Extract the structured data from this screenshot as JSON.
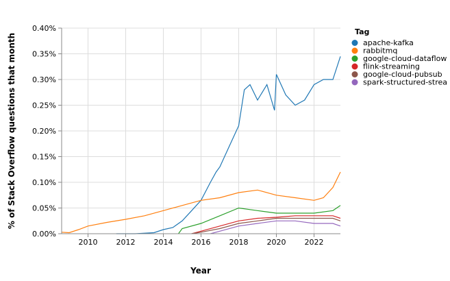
{
  "chart_data": {
    "type": "line",
    "xlabel": "Year",
    "ylabel": "% of Stack Overflow questions that month",
    "xlim": [
      2008.6,
      2023.4
    ],
    "ylim": [
      0,
      0.4
    ],
    "x_ticks": [
      "2010",
      "2012",
      "2014",
      "2016",
      "2018",
      "2020",
      "2022"
    ],
    "y_ticks": [
      "0.00%",
      "0.05%",
      "0.10%",
      "0.15%",
      "0.20%",
      "0.25%",
      "0.30%",
      "0.35%",
      "0.40%"
    ],
    "grid": true,
    "legend": {
      "title": "Tag",
      "position": "right"
    },
    "series": [
      {
        "name": "apache-kafka",
        "color": "#1f77b4",
        "x": [
          2011.5,
          2012.5,
          2013.5,
          2014.0,
          2014.5,
          2015.0,
          2015.5,
          2016.0,
          2016.5,
          2016.8,
          2017.0,
          2017.5,
          2018.0,
          2018.3,
          2018.6,
          2019.0,
          2019.5,
          2019.9,
          2020.0,
          2020.5,
          2021.0,
          2021.5,
          2022.0,
          2022.5,
          2023.0,
          2023.4
        ],
        "y": [
          0.0,
          0.0,
          0.002,
          0.008,
          0.012,
          0.025,
          0.045,
          0.065,
          0.1,
          0.12,
          0.13,
          0.17,
          0.21,
          0.28,
          0.29,
          0.26,
          0.29,
          0.24,
          0.31,
          0.27,
          0.25,
          0.26,
          0.29,
          0.3,
          0.3,
          0.345
        ]
      },
      {
        "name": "rabbitmq",
        "color": "#ff7f0e",
        "x": [
          2008.6,
          2009.0,
          2009.5,
          2010.0,
          2011.0,
          2012.0,
          2013.0,
          2014.0,
          2015.0,
          2016.0,
          2017.0,
          2018.0,
          2019.0,
          2020.0,
          2021.0,
          2022.0,
          2022.5,
          2023.0,
          2023.4
        ],
        "y": [
          0.003,
          0.002,
          0.008,
          0.015,
          0.022,
          0.028,
          0.035,
          0.045,
          0.055,
          0.065,
          0.07,
          0.08,
          0.085,
          0.075,
          0.07,
          0.065,
          0.07,
          0.09,
          0.12
        ]
      },
      {
        "name": "google-cloud-dataflow",
        "color": "#2ca02c",
        "x": [
          2014.8,
          2015.0,
          2016.0,
          2017.0,
          2018.0,
          2019.0,
          2020.0,
          2021.0,
          2022.0,
          2023.0,
          2023.4
        ],
        "y": [
          0.0,
          0.01,
          0.02,
          0.035,
          0.05,
          0.045,
          0.04,
          0.04,
          0.04,
          0.045,
          0.055
        ]
      },
      {
        "name": "flink-streaming",
        "color": "#d62728",
        "x": [
          2015.5,
          2016.0,
          2017.0,
          2018.0,
          2019.0,
          2020.0,
          2021.0,
          2022.0,
          2023.0,
          2023.4
        ],
        "y": [
          0.0,
          0.005,
          0.015,
          0.025,
          0.03,
          0.032,
          0.035,
          0.035,
          0.035,
          0.03
        ]
      },
      {
        "name": "google-cloud-pubsub",
        "color": "#8c564b",
        "x": [
          2015.5,
          2016.0,
          2017.0,
          2018.0,
          2019.0,
          2020.0,
          2021.0,
          2022.0,
          2023.0,
          2023.4
        ],
        "y": [
          0.0,
          0.003,
          0.01,
          0.02,
          0.025,
          0.03,
          0.03,
          0.03,
          0.03,
          0.025
        ]
      },
      {
        "name": "spark-structured-streaming",
        "color": "#9467bd",
        "x": [
          2016.5,
          2017.0,
          2018.0,
          2019.0,
          2020.0,
          2021.0,
          2022.0,
          2023.0,
          2023.4
        ],
        "y": [
          0.0,
          0.005,
          0.015,
          0.02,
          0.025,
          0.025,
          0.02,
          0.02,
          0.015
        ]
      }
    ]
  },
  "legend_display": [
    "apache-kafka",
    "rabbitmq",
    "google-cloud-dataflow",
    "flink-streaming",
    "google-cloud-pubsub",
    "spark-structured-strea"
  ]
}
